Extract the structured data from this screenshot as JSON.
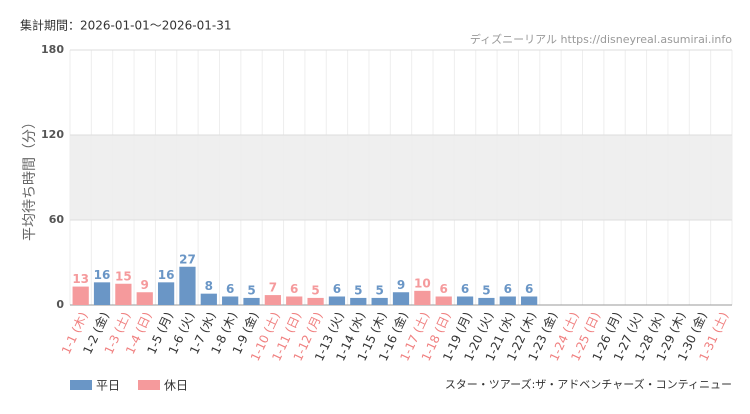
{
  "header": {
    "period": "集計期間：2026-01-01〜2026-01-31",
    "source": "ディズニーリアル https://disneyreal.asumirai.info",
    "attraction": "スター・ツアーズ:ザ・アドベンチャーズ・コンティニュー"
  },
  "chart_data": {
    "type": "bar",
    "y_label": "平均待ち時間（分）",
    "categories": [
      "1-1 (木)",
      "1-2 (金)",
      "1-3 (土)",
      "1-4 (日)",
      "1-5 (月)",
      "1-6 (火)",
      "1-7 (水)",
      "1-8 (木)",
      "1-9 (金)",
      "1-10 (土)",
      "1-11 (日)",
      "1-12 (月)",
      "1-13 (火)",
      "1-14 (水)",
      "1-15 (木)",
      "1-16 (金)",
      "1-17 (土)",
      "1-18 (日)",
      "1-19 (月)",
      "1-20 (火)",
      "1-21 (水)",
      "1-22 (木)",
      "1-23 (金)",
      "1-24 (土)",
      "1-25 (日)",
      "1-26 (月)",
      "1-27 (火)",
      "1-28 (水)",
      "1-29 (木)",
      "1-30 (金)",
      "1-31 (土)"
    ],
    "category_label_colors": [
      "#f08080",
      "#333",
      "#f08080",
      "#f08080",
      "#333",
      "#333",
      "#333",
      "#333",
      "#333",
      "#f08080",
      "#f08080",
      "#f08080",
      "#333",
      "#333",
      "#333",
      "#333",
      "#f08080",
      "#f08080",
      "#333",
      "#333",
      "#333",
      "#333",
      "#333",
      "#f08080",
      "#f08080",
      "#333",
      "#333",
      "#333",
      "#333",
      "#333",
      "#f08080"
    ],
    "series": [
      {
        "name": "平日",
        "color": "#6a96c6",
        "values": [
          null,
          16,
          null,
          null,
          16,
          27,
          8,
          6,
          5,
          null,
          null,
          null,
          6,
          5,
          5,
          9,
          null,
          null,
          6,
          5,
          6,
          6,
          null,
          null,
          null,
          null,
          null,
          null,
          null,
          null,
          null
        ]
      },
      {
        "name": "休日",
        "color": "#f59a9c",
        "values": [
          13,
          null,
          15,
          9,
          null,
          null,
          null,
          null,
          null,
          7,
          6,
          5,
          null,
          null,
          null,
          null,
          10,
          6,
          null,
          null,
          null,
          null,
          null,
          null,
          null,
          null,
          null,
          null,
          null,
          null,
          null
        ]
      }
    ],
    "ylim": [
      0,
      180
    ],
    "yticks": [
      0,
      60,
      120,
      180
    ],
    "shaded_band": [
      60,
      120
    ],
    "grid": true
  }
}
